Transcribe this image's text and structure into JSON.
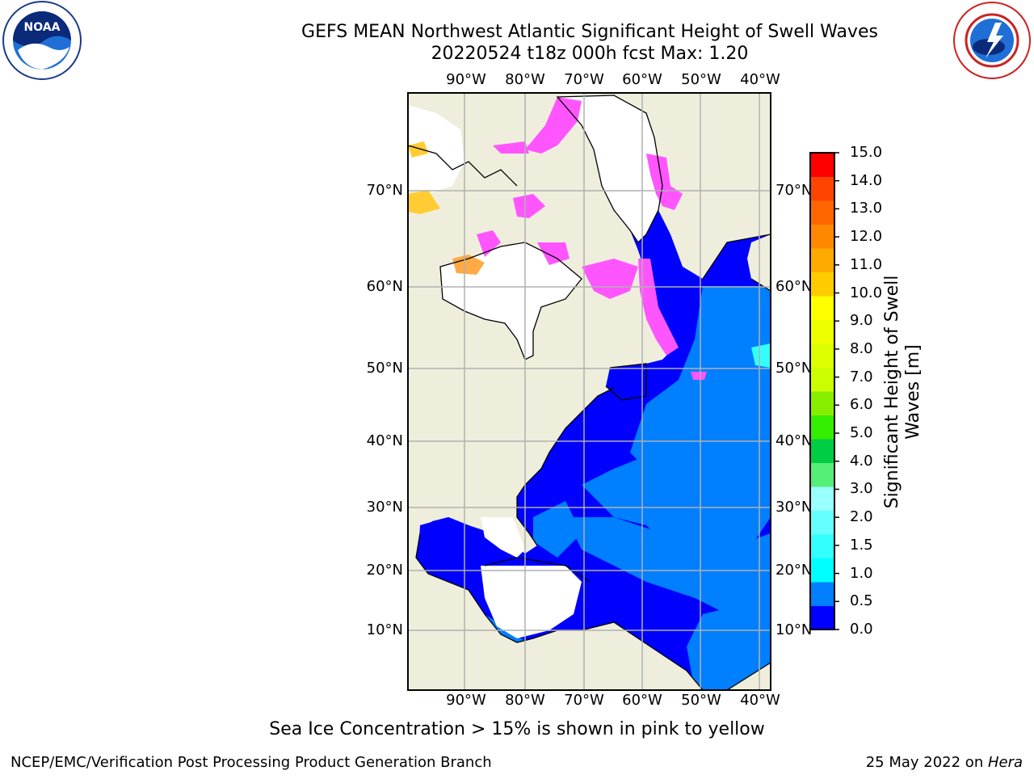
{
  "title": {
    "line1": "GEFS MEAN Northwest Atlantic Significant Height of Swell Waves",
    "line2": "20220524 t18z 000h fcst   Max: 1.20"
  },
  "logos": {
    "left": "noaa-logo",
    "right": "national-weather-service-logo"
  },
  "map": {
    "lon_labels": [
      "90°W",
      "80°W",
      "70°W",
      "60°W",
      "50°W",
      "40°W"
    ],
    "lat_labels": [
      "70°N",
      "60°N",
      "50°N",
      "40°N",
      "30°N",
      "20°N",
      "10°N"
    ],
    "colors": {
      "land": "#efeedd",
      "ocean_low": "#0000ff",
      "ocean_mid": "#007fff",
      "swell_cyan": "#33ffff",
      "ice_pink": "#ff55ff",
      "ice_orange": "#ffaa44",
      "ice_yellow": "#ffcc33",
      "grid": "#b0b0b0"
    }
  },
  "colorbar": {
    "label_line1": "Significant Height of Swell",
    "label_line2": "Waves [m]",
    "ticks": [
      "15.0",
      "14.0",
      "13.0",
      "12.0",
      "11.0",
      "10.0",
      "9.0",
      "8.0",
      "7.0",
      "6.0",
      "5.0",
      "4.0",
      "3.0",
      "2.0",
      "1.5",
      "1.0",
      "0.5",
      "0.0"
    ],
    "bands": [
      "#0000ff",
      "#007fff",
      "#00ffff",
      "#33ffff",
      "#66ffff",
      "#99ffff",
      "#55ee77",
      "#00cc44",
      "#33ee00",
      "#88ee00",
      "#ccff00",
      "#ddff00",
      "#eeff00",
      "#ffff00",
      "#ffcc00",
      "#ffaa00",
      "#ff8800",
      "#ff6600",
      "#ff4400",
      "#ff0000"
    ]
  },
  "note": "Sea Ice Concentration > 15% is shown in pink to yellow",
  "footer": {
    "left": "NCEP/EMC/Verification Post Processing Product Generation Branch",
    "right_prefix": "25 May 2022 on ",
    "right_host": "Hera"
  }
}
